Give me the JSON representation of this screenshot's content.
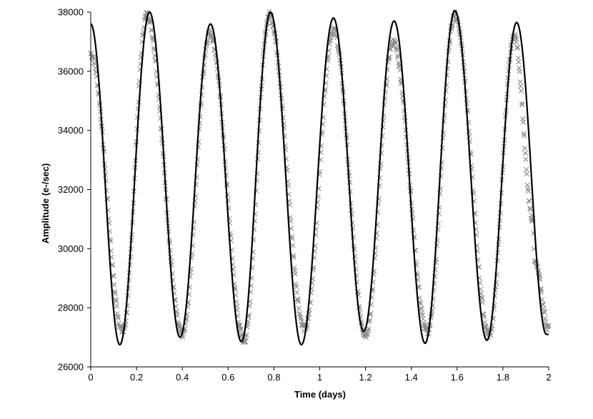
{
  "chart_data": {
    "type": "scatter",
    "title": "",
    "xlabel": "Time (days)",
    "ylabel": "Amplitude (e-/sec)",
    "xlim": [
      0,
      2
    ],
    "ylim": [
      26000,
      38000
    ],
    "x_ticks": [
      0,
      0.2,
      0.4,
      0.6,
      0.8,
      1,
      1.2,
      1.4,
      1.6,
      1.8,
      2
    ],
    "x_tick_labels": [
      "0",
      "0.2",
      "0.4",
      "0.6",
      "0.8",
      "1",
      "1.2",
      "1.4",
      "1.6",
      "1.8",
      "2"
    ],
    "y_ticks": [
      26000,
      28000,
      30000,
      32000,
      34000,
      36000,
      38000
    ],
    "y_tick_labels": [
      "26000",
      "28000",
      "30000",
      "32000",
      "34000",
      "36000",
      "38000"
    ],
    "grid": false,
    "legend": "none",
    "series": [
      {
        "style": "line",
        "color": "#000000",
        "x": [
          0.0,
          0.127,
          0.257,
          0.39,
          0.523,
          0.658,
          0.785,
          0.92,
          1.06,
          1.192,
          1.325,
          1.46,
          1.59,
          1.73,
          1.86,
          1.99
        ],
        "y": [
          37600,
          26750,
          38000,
          27000,
          37600,
          26850,
          38000,
          26750,
          37800,
          27200,
          37700,
          26800,
          38050,
          26900,
          37650,
          27100
        ]
      },
      {
        "style": "markers",
        "marker": "x",
        "color": "#8c8c8c",
        "x": [
          0.0,
          0.14,
          0.245,
          0.4,
          0.52,
          0.67,
          0.78,
          0.935,
          1.06,
          1.2,
          1.32,
          1.47,
          1.59,
          1.74,
          1.85,
          1.93,
          1.94,
          2.0
        ],
        "y": [
          36600,
          27200,
          37900,
          27100,
          37300,
          26900,
          37900,
          27300,
          37400,
          27100,
          37000,
          27200,
          37900,
          27100,
          37200,
          31000,
          29500,
          27300
        ]
      }
    ]
  }
}
